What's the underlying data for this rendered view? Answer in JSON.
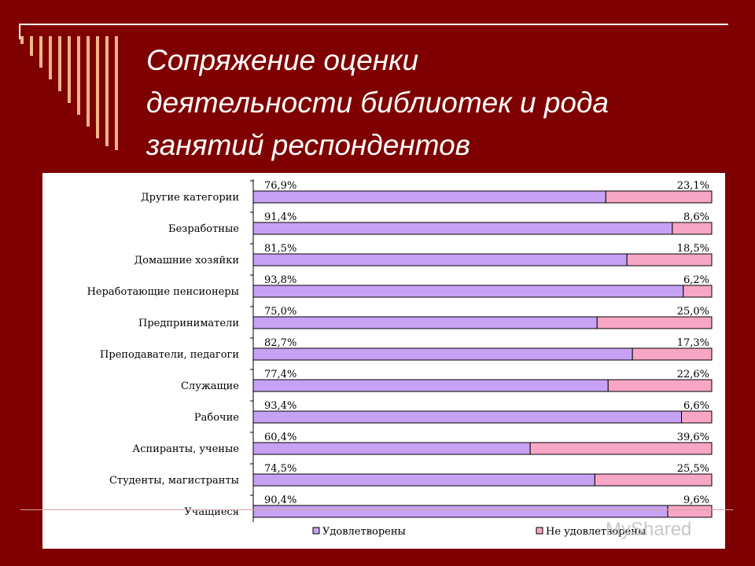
{
  "title_lines": [
    "Сопряжение оценки",
    "деятельности библиотек и рода",
    "занятий респондентов"
  ],
  "watermark": "MyShared",
  "colors": {
    "background": "#7f0000",
    "satisfied": "#c7a2f4",
    "not_satisfied": "#f7a6c6"
  },
  "chart_data": {
    "type": "bar",
    "orientation": "horizontal",
    "stacked": true,
    "categories": [
      "Другие категории",
      "Безработные",
      "Домашние хозяйки",
      "Неработающие пенсионеры",
      "Предприниматели",
      "Преподаватели, педагоги",
      "Служащие",
      "Рабочие",
      "Аспиранты, ученые",
      "Студенты, магистранты",
      "Учащиеся"
    ],
    "series": [
      {
        "name": "Удовлетворены",
        "values": [
          76.9,
          91.4,
          81.5,
          93.8,
          75.0,
          82.7,
          77.4,
          93.4,
          60.4,
          74.5,
          90.4
        ],
        "labels": [
          "76,9%",
          "91,4%",
          "81,5%",
          "93,8%",
          "75,0%",
          "82,7%",
          "77,4%",
          "93,4%",
          "60,4%",
          "74,5%",
          "90,4%"
        ]
      },
      {
        "name": "Не удовлетворены",
        "values": [
          23.1,
          8.6,
          18.5,
          6.2,
          25.0,
          17.3,
          22.6,
          6.6,
          39.6,
          25.5,
          9.6
        ],
        "labels": [
          "23,1%",
          "8,6%",
          "18,5%",
          "6,2%",
          "25,0%",
          "17,3%",
          "22,6%",
          "6,6%",
          "39,6%",
          "25,5%",
          "9,6%"
        ]
      }
    ],
    "xlim": [
      0,
      100
    ],
    "legend_position": "bottom"
  }
}
